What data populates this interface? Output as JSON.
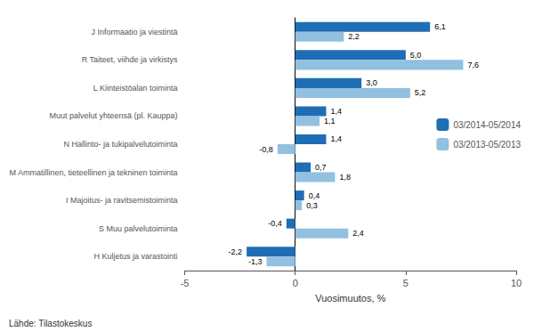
{
  "chart_data": {
    "type": "bar",
    "orientation": "horizontal",
    "categories": [
      "H Kuljetus ja varastointi",
      "S Muu palvelutoiminta",
      "I Majoitus- ja ravitsemistoiminta",
      "M Ammatillinen, tieteellinen ja tekninen toiminta",
      "N Hallinto- ja tukipalvelutoiminta",
      "Muut palvelut yhteensä (pl. Kauppa)",
      "L Kiinteistöalan toiminta",
      "R Taiteet, viihde ja virkistys",
      "J Informaatio ja viestintä"
    ],
    "series": [
      {
        "name": "03/2014-05/2014",
        "color": "#1F6EB5",
        "values": [
          -2.2,
          -0.4,
          0.4,
          0.7,
          1.4,
          1.4,
          3.0,
          5.0,
          6.1
        ],
        "value_labels": [
          "-2,2",
          "-0,4",
          "0,4",
          "0,7",
          "1,4",
          "1,4",
          "3,0",
          "5,0",
          "6,1"
        ]
      },
      {
        "name": "03/2013-05/2013",
        "color": "#92C0E0",
        "values": [
          -1.3,
          2.4,
          0.3,
          1.8,
          -0.8,
          1.1,
          5.2,
          7.6,
          2.2
        ],
        "value_labels": [
          "-1,3",
          "2,4",
          "0,3",
          "1,8",
          "-0,8",
          "1,1",
          "5,2",
          "7,6",
          "2,2"
        ]
      }
    ],
    "xlim": [
      -5,
      10
    ],
    "xticks": [
      -5,
      0,
      5,
      10
    ],
    "xlabel": "Vuosimuutos, %",
    "annotations": [
      "Lähde: Tilastokeskus"
    ],
    "data_labels": true,
    "legend": "right",
    "grid": false
  }
}
